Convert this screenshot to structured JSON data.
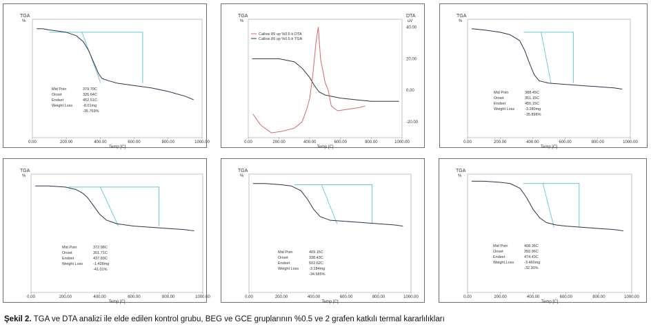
{
  "caption": {
    "label": "Şekil 2.",
    "text": "TGA ve DTA analizi ile elde edilen kontrol grubu, BEG ve GCE gruplarının  %0.5 ve 2 grafen katkılı termal kararlılıkları"
  },
  "colors": {
    "tga_curve": "#2b2f4a",
    "reference_box": "#62c6d6",
    "dta_curve": "#d9646a",
    "tga_line": "#333333",
    "frame": "#6e6e6e",
    "axis_text": "#333333"
  },
  "chart_data": [
    {
      "type": "line",
      "title": "",
      "ylabel_top": "TGA",
      "yunit_top": "%",
      "xlabel": "Temp [C]",
      "x_ticks": [
        "0.00",
        "200.00",
        "400.00",
        "600.00",
        "800.00",
        "1000.00"
      ],
      "xlim": [
        0,
        1000
      ],
      "series": [
        {
          "values": [
            [
              25,
              92
            ],
            [
              60,
              92
            ],
            [
              100,
              91
            ],
            [
              200,
              89
            ],
            [
              260,
              86
            ],
            [
              300,
              81
            ],
            [
              330,
              74
            ],
            [
              360,
              64
            ],
            [
              390,
              54
            ],
            [
              410,
              50
            ],
            [
              450,
              48
            ],
            [
              500,
              46
            ],
            [
              600,
              44
            ],
            [
              700,
              42
            ],
            [
              800,
              39
            ],
            [
              900,
              35
            ],
            [
              950,
              32
            ]
          ]
        }
      ],
      "reference_box": {
        "x_start": 100,
        "x_end": 650,
        "y_top": 89,
        "y_bottom": 46
      },
      "annotations": [
        {
          "label": "Mid Poin",
          "value": "379.70C"
        },
        {
          "label": "Onset",
          "value": "326.64C"
        },
        {
          "label": "Endset",
          "value": "452.51C"
        },
        {
          "label": "Weight Loss",
          "value": "-8.01mg"
        },
        {
          "label": "",
          "value": "-35.769%"
        }
      ]
    },
    {
      "type": "line",
      "title": "",
      "ylabel_top": "TGA",
      "yunit_top": "%",
      "ylabel_right": "DTA",
      "yunit_right": "uV",
      "xlabel": "Temp [C]",
      "x_ticks": [
        "0.00",
        "200.00",
        "400.00",
        "600.00",
        "800.00",
        "1000.00"
      ],
      "y_right_ticks": [
        "40.00",
        "20.00",
        "0.00",
        "-20.00"
      ],
      "xlim": [
        0,
        1000
      ],
      "legend": [
        "Callosi 89 up %0.5 b DTA",
        "Callosi 89 up %0.5 b TGA"
      ],
      "series": [
        {
          "values": [
            [
              25,
              20
            ],
            [
              100,
              20
            ],
            [
              200,
              20
            ],
            [
              300,
              18
            ],
            [
              350,
              14
            ],
            [
              400,
              8
            ],
            [
              430,
              3
            ],
            [
              460,
              -1
            ],
            [
              500,
              -3
            ],
            [
              600,
              -5
            ],
            [
              700,
              -6
            ],
            [
              800,
              -7
            ],
            [
              900,
              -7
            ],
            [
              980,
              -7
            ]
          ]
        },
        {
          "values": [
            [
              30,
              -15
            ],
            [
              80,
              -22
            ],
            [
              150,
              -27
            ],
            [
              220,
              -26
            ],
            [
              300,
              -24
            ],
            [
              350,
              -20
            ],
            [
              380,
              -12
            ],
            [
              400,
              -5
            ],
            [
              420,
              10
            ],
            [
              440,
              30
            ],
            [
              455,
              40
            ],
            [
              470,
              20
            ],
            [
              500,
              5
            ],
            [
              520,
              0
            ],
            [
              540,
              -10
            ],
            [
              580,
              -13
            ],
            [
              650,
              -12
            ],
            [
              720,
              -11
            ],
            [
              760,
              -10
            ]
          ]
        }
      ]
    },
    {
      "type": "line",
      "title": "",
      "ylabel_top": "TGA",
      "yunit_top": "%",
      "xlabel": "Temp [C]",
      "x_ticks": [
        "0.00",
        "200.00",
        "400.00",
        "600.00",
        "800.00",
        "1000.00"
      ],
      "xlim": [
        0,
        1000
      ],
      "series": [
        {
          "values": [
            [
              25,
              92
            ],
            [
              100,
              91
            ],
            [
              200,
              89
            ],
            [
              260,
              87
            ],
            [
              320,
              82
            ],
            [
              350,
              74
            ],
            [
              380,
              63
            ],
            [
              410,
              53
            ],
            [
              440,
              48
            ],
            [
              500,
              46
            ],
            [
              600,
              45
            ],
            [
              700,
              44
            ],
            [
              800,
              43
            ],
            [
              900,
              42
            ],
            [
              950,
              41
            ]
          ]
        }
      ],
      "reference_box": {
        "x_start": 345,
        "x_end": 650,
        "y_top": 89,
        "y_bottom": 46
      },
      "annotations": [
        {
          "label": "Mid Poin",
          "value": "388.45C"
        },
        {
          "label": "Onset",
          "value": "351.15C"
        },
        {
          "label": "Endset",
          "value": "455.15C"
        },
        {
          "label": "Weight Loss",
          "value": "-3.280mg"
        },
        {
          "label": "",
          "value": "-35.898%"
        }
      ]
    },
    {
      "type": "line",
      "title": "",
      "ylabel_top": "TGA",
      "yunit_top": "%",
      "xlabel": "Temp [C]",
      "x_ticks": [
        "0.00",
        "200.00",
        "400.00",
        "600.00",
        "800.00",
        "1000.00"
      ],
      "xlim": [
        0,
        1000
      ],
      "series": [
        {
          "values": [
            [
              25,
              90
            ],
            [
              100,
              90
            ],
            [
              200,
              89
            ],
            [
              260,
              87
            ],
            [
              300,
              84
            ],
            [
              330,
              80
            ],
            [
              360,
              74
            ],
            [
              400,
              66
            ],
            [
              440,
              61
            ],
            [
              500,
              58
            ],
            [
              600,
              56
            ],
            [
              700,
              55
            ],
            [
              800,
              54
            ],
            [
              900,
              53
            ],
            [
              950,
              52
            ]
          ]
        }
      ],
      "reference_box": {
        "x_start": 220,
        "x_end": 745,
        "y_top": 89,
        "y_bottom": 56
      },
      "annotations": [
        {
          "label": "Mid Poin",
          "value": "372.98C"
        },
        {
          "label": "Onset",
          "value": "301.71C"
        },
        {
          "label": "Endset",
          "value": "437.83C"
        },
        {
          "label": "Weight Loss",
          "value": "-1.428mg"
        },
        {
          "label": "",
          "value": "-41.01%"
        }
      ]
    },
    {
      "type": "line",
      "title": "",
      "ylabel_top": "TGA",
      "yunit_top": "%",
      "xlabel": "Temp [C]",
      "x_ticks": [
        "0.00",
        "200.00",
        "400.00",
        "600.00",
        "800.00",
        "1000.00"
      ],
      "xlim": [
        0,
        1000
      ],
      "series": [
        {
          "values": [
            [
              25,
              92
            ],
            [
              100,
              92
            ],
            [
              200,
              91
            ],
            [
              260,
              90
            ],
            [
              320,
              86
            ],
            [
              360,
              79
            ],
            [
              400,
              70
            ],
            [
              440,
              64
            ],
            [
              500,
              61
            ],
            [
              600,
              60
            ],
            [
              700,
              59
            ],
            [
              800,
              58
            ],
            [
              900,
              57
            ],
            [
              950,
              56
            ]
          ]
        }
      ],
      "reference_box": {
        "x_start": 280,
        "x_end": 760,
        "y_top": 91,
        "y_bottom": 58
      },
      "annotations": [
        {
          "label": "Mid Poin",
          "value": "409.15C"
        },
        {
          "label": "Onset",
          "value": "338.43C"
        },
        {
          "label": "Endset",
          "value": "502.62C"
        },
        {
          "label": "Weight Loss",
          "value": "-3.184mg"
        },
        {
          "label": "",
          "value": "-34.585%"
        }
      ]
    },
    {
      "type": "line",
      "title": "",
      "ylabel_top": "TGA",
      "yunit_top": "%",
      "xlabel": "Temp [C]",
      "x_ticks": [
        "0.00",
        "200.00",
        "400.00",
        "600.00",
        "800.00",
        "1000.00"
      ],
      "xlim": [
        0,
        1000
      ],
      "series": [
        {
          "values": [
            [
              25,
              94
            ],
            [
              100,
              94
            ],
            [
              200,
              93
            ],
            [
              260,
              92
            ],
            [
              320,
              88
            ],
            [
              360,
              80
            ],
            [
              400,
              70
            ],
            [
              440,
              63
            ],
            [
              480,
              59
            ],
            [
              540,
              57
            ],
            [
              600,
              56
            ],
            [
              700,
              55
            ],
            [
              800,
              54
            ],
            [
              900,
              53
            ],
            [
              950,
              52
            ]
          ]
        }
      ],
      "reference_box": {
        "x_start": 340,
        "x_end": 680,
        "y_top": 92,
        "y_bottom": 55
      },
      "annotations": [
        {
          "label": "Mid Poin",
          "value": "408.36C"
        },
        {
          "label": "Onset",
          "value": "350.96C"
        },
        {
          "label": "Endset",
          "value": "474.43C"
        },
        {
          "label": "Weight Loss",
          "value": "-3.460mg"
        },
        {
          "label": "",
          "value": "-32.30%"
        }
      ]
    }
  ]
}
